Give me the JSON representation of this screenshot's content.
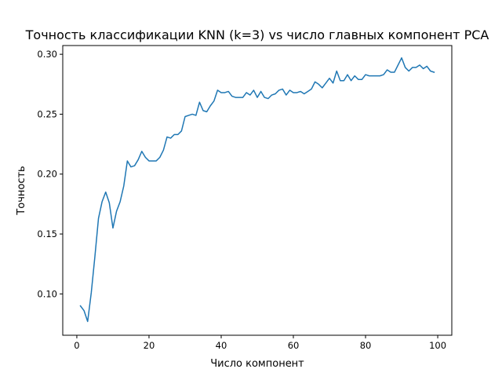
{
  "chart_data": {
    "type": "line",
    "title": "Точность классификации KNN (k=3) vs число главных компонент PCA",
    "xlabel": "Число компонент",
    "ylabel": "Точность",
    "xlim": [
      -3.9,
      103.9
    ],
    "ylim": [
      0.0655,
      0.3073
    ],
    "x_ticks": [
      0,
      20,
      40,
      60,
      80,
      100
    ],
    "x_tick_labels": [
      "0",
      "20",
      "40",
      "60",
      "80",
      "100"
    ],
    "y_ticks": [
      0.1,
      0.15,
      0.2,
      0.25,
      0.3
    ],
    "y_tick_labels": [
      "0.10",
      "0.15",
      "0.20",
      "0.25",
      "0.30"
    ],
    "grid": false,
    "legend": "none",
    "series": [
      {
        "color": "#1f77b4",
        "x": [
          1,
          2,
          3,
          4,
          5,
          6,
          7,
          8,
          9,
          10,
          11,
          12,
          13,
          14,
          15,
          16,
          17,
          18,
          19,
          20,
          21,
          22,
          23,
          24,
          25,
          26,
          27,
          28,
          29,
          30,
          31,
          32,
          33,
          34,
          35,
          36,
          37,
          38,
          39,
          40,
          41,
          42,
          43,
          44,
          45,
          46,
          47,
          48,
          49,
          50,
          51,
          52,
          53,
          54,
          55,
          56,
          57,
          58,
          59,
          60,
          61,
          62,
          63,
          64,
          65,
          66,
          67,
          68,
          69,
          70,
          71,
          72,
          73,
          74,
          75,
          76,
          77,
          78,
          79,
          80,
          81,
          82,
          83,
          84,
          85,
          86,
          87,
          88,
          89,
          90,
          91,
          92,
          93,
          94,
          95,
          96,
          97,
          98,
          99
        ],
        "y": [
          0.09,
          0.086,
          0.077,
          0.101,
          0.131,
          0.163,
          0.177,
          0.185,
          0.176,
          0.155,
          0.169,
          0.177,
          0.19,
          0.211,
          0.206,
          0.207,
          0.212,
          0.219,
          0.214,
          0.211,
          0.211,
          0.211,
          0.214,
          0.22,
          0.231,
          0.23,
          0.233,
          0.233,
          0.236,
          0.248,
          0.249,
          0.25,
          0.249,
          0.26,
          0.253,
          0.252,
          0.257,
          0.261,
          0.27,
          0.268,
          0.268,
          0.269,
          0.265,
          0.264,
          0.264,
          0.264,
          0.268,
          0.266,
          0.27,
          0.264,
          0.269,
          0.264,
          0.263,
          0.266,
          0.267,
          0.27,
          0.271,
          0.266,
          0.27,
          0.268,
          0.268,
          0.269,
          0.267,
          0.269,
          0.271,
          0.277,
          0.275,
          0.272,
          0.276,
          0.28,
          0.276,
          0.286,
          0.278,
          0.278,
          0.283,
          0.278,
          0.282,
          0.279,
          0.279,
          0.283,
          0.282,
          0.282,
          0.282,
          0.282,
          0.283,
          0.287,
          0.285,
          0.285,
          0.291,
          0.297,
          0.289,
          0.286,
          0.289,
          0.289,
          0.291,
          0.288,
          0.29,
          0.286,
          0.285
        ]
      }
    ]
  }
}
